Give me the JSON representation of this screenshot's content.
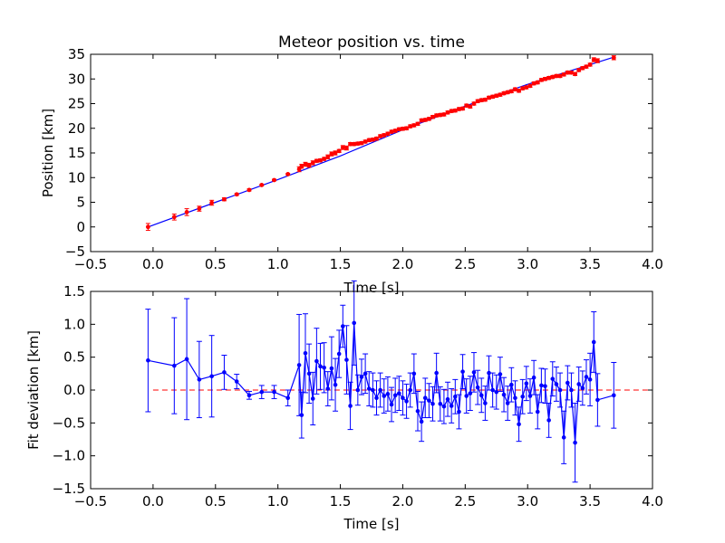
{
  "colors": {
    "fit_line": "#0000ff",
    "observations": "#ff0000",
    "residuals": "#0000ff",
    "zero_line": "#ff0000",
    "axes": "#000000"
  },
  "chart_data": [
    {
      "id": "position",
      "type": "scatter",
      "title": "Meteor position vs. time",
      "xlabel": "Time [s]",
      "ylabel": "Position [km]",
      "xlim": [
        -0.5,
        4.0
      ],
      "ylim": [
        -5,
        35
      ],
      "xticks": [
        -0.5,
        0.0,
        0.5,
        1.0,
        1.5,
        2.0,
        2.5,
        3.0,
        3.5,
        4.0
      ],
      "xtick_labels": [
        "−0.5",
        "0.0",
        "0.5",
        "1.0",
        "1.5",
        "2.0",
        "2.5",
        "3.0",
        "3.5",
        "4.0"
      ],
      "yticks": [
        -5,
        0,
        5,
        10,
        15,
        20,
        25,
        30,
        35
      ],
      "ytick_labels": [
        "−5",
        "0",
        "5",
        "10",
        "15",
        "20",
        "25",
        "30",
        "35"
      ],
      "grid": false,
      "legend": "none",
      "series": [
        {
          "kind": "line",
          "x": [
            -0.04,
            0.5,
            1.0,
            1.5,
            2.0,
            2.5,
            3.0,
            3.5,
            3.7
          ],
          "y": [
            0.0,
            5.0,
            9.6,
            14.4,
            19.7,
            24.5,
            28.9,
            32.9,
            34.5
          ]
        },
        {
          "kind": "points",
          "x": [
            -0.04,
            0.17,
            0.27,
            0.37,
            0.47,
            0.57,
            0.67,
            0.77,
            0.87,
            0.97,
            1.08,
            1.17,
            1.19,
            1.22,
            1.25,
            1.28,
            1.31,
            1.34,
            1.37,
            1.4,
            1.43,
            1.46,
            1.49,
            1.52,
            1.55,
            1.58,
            1.61,
            1.64,
            1.67,
            1.7,
            1.73,
            1.76,
            1.79,
            1.82,
            1.85,
            1.88,
            1.91,
            1.94,
            1.97,
            2.0,
            2.03,
            2.06,
            2.09,
            2.12,
            2.15,
            2.18,
            2.21,
            2.24,
            2.27,
            2.3,
            2.33,
            2.36,
            2.39,
            2.42,
            2.45,
            2.48,
            2.51,
            2.54,
            2.57,
            2.6,
            2.63,
            2.66,
            2.69,
            2.72,
            2.75,
            2.78,
            2.81,
            2.84,
            2.87,
            2.9,
            2.93,
            2.96,
            2.99,
            3.02,
            3.05,
            3.08,
            3.11,
            3.14,
            3.17,
            3.2,
            3.23,
            3.26,
            3.29,
            3.32,
            3.35,
            3.38,
            3.41,
            3.44,
            3.47,
            3.5,
            3.53,
            3.56,
            3.69
          ],
          "y": [
            0.0,
            2.0,
            3.0,
            3.7,
            4.9,
            5.6,
            6.6,
            7.5,
            8.5,
            9.5,
            10.7,
            11.7,
            12.3,
            12.7,
            12.5,
            13.0,
            13.4,
            13.5,
            13.8,
            14.2,
            14.8,
            15.0,
            15.4,
            16.1,
            16.0,
            16.8,
            16.8,
            16.9,
            17.0,
            17.3,
            17.6,
            17.7,
            17.9,
            18.4,
            18.6,
            18.9,
            19.3,
            19.5,
            19.8,
            19.9,
            20.0,
            20.4,
            20.6,
            20.9,
            21.6,
            21.7,
            21.9,
            22.3,
            22.6,
            22.7,
            22.8,
            23.2,
            23.5,
            23.6,
            23.9,
            24.0,
            24.6,
            24.4,
            25.0,
            25.5,
            25.7,
            25.8,
            26.2,
            26.4,
            26.6,
            26.8,
            27.1,
            27.3,
            27.5,
            27.9,
            27.6,
            28.1,
            28.3,
            28.6,
            29.1,
            29.3,
            29.8,
            30.0,
            30.2,
            30.4,
            30.6,
            30.6,
            30.9,
            31.3,
            31.3,
            31.0,
            31.8,
            32.2,
            32.5,
            32.9,
            33.9,
            33.7,
            34.3
          ],
          "yerr": [
            0.7,
            0.6,
            0.7,
            0.5,
            0.5,
            0.3,
            0.2,
            0.2,
            0.15,
            0.15,
            0.15,
            0.5,
            0.4,
            0.4,
            0.4,
            0.4,
            0.3,
            0.3,
            0.3,
            0.4,
            0.4,
            0.4,
            0.3,
            0.4,
            0.4,
            0.3,
            0.3,
            0.3,
            0.3,
            0.3,
            0.3,
            0.3,
            0.3,
            0.3,
            0.3,
            0.3,
            0.3,
            0.3,
            0.3,
            0.3,
            0.3,
            0.3,
            0.3,
            0.3,
            0.3,
            0.3,
            0.3,
            0.3,
            0.3,
            0.3,
            0.3,
            0.3,
            0.3,
            0.3,
            0.3,
            0.3,
            0.3,
            0.3,
            0.3,
            0.3,
            0.3,
            0.3,
            0.3,
            0.3,
            0.3,
            0.3,
            0.3,
            0.3,
            0.3,
            0.3,
            0.3,
            0.3,
            0.3,
            0.3,
            0.3,
            0.3,
            0.3,
            0.3,
            0.3,
            0.3,
            0.3,
            0.3,
            0.3,
            0.3,
            0.3,
            0.3,
            0.3,
            0.3,
            0.3,
            0.3,
            0.4,
            0.4,
            0.4
          ]
        }
      ]
    },
    {
      "id": "residuals",
      "type": "line",
      "title": "",
      "xlabel": "Time [s]",
      "ylabel": "Fit deviation [km]",
      "xlim": [
        -0.5,
        4.0
      ],
      "ylim": [
        -1.5,
        1.5
      ],
      "xticks": [
        -0.5,
        0.0,
        0.5,
        1.0,
        1.5,
        2.0,
        2.5,
        3.0,
        3.5,
        4.0
      ],
      "xtick_labels": [
        "−0.5",
        "0.0",
        "0.5",
        "1.0",
        "1.5",
        "2.0",
        "2.5",
        "3.0",
        "3.5",
        "4.0"
      ],
      "yticks": [
        -1.5,
        -1.0,
        -0.5,
        0.0,
        0.5,
        1.0,
        1.5
      ],
      "ytick_labels": [
        "−1.5",
        "−1.0",
        "−0.5",
        "0.0",
        "0.5",
        "1.0",
        "1.5"
      ],
      "grid": false,
      "legend": "none",
      "reference_line": 0.0,
      "series": [
        {
          "kind": "line_with_markers",
          "x": [
            -0.04,
            0.17,
            0.27,
            0.37,
            0.47,
            0.57,
            0.67,
            0.77,
            0.87,
            0.97,
            1.08,
            1.17,
            1.19,
            1.22,
            1.25,
            1.28,
            1.31,
            1.34,
            1.37,
            1.4,
            1.43,
            1.46,
            1.49,
            1.52,
            1.55,
            1.58,
            1.61,
            1.64,
            1.67,
            1.7,
            1.73,
            1.76,
            1.79,
            1.82,
            1.85,
            1.88,
            1.91,
            1.94,
            1.97,
            2.0,
            2.03,
            2.06,
            2.09,
            2.12,
            2.15,
            2.18,
            2.21,
            2.24,
            2.27,
            2.3,
            2.33,
            2.36,
            2.39,
            2.42,
            2.45,
            2.48,
            2.51,
            2.54,
            2.57,
            2.6,
            2.63,
            2.66,
            2.69,
            2.72,
            2.75,
            2.78,
            2.81,
            2.84,
            2.87,
            2.9,
            2.93,
            2.96,
            2.99,
            3.02,
            3.05,
            3.08,
            3.11,
            3.14,
            3.17,
            3.2,
            3.23,
            3.26,
            3.29,
            3.32,
            3.35,
            3.38,
            3.41,
            3.44,
            3.47,
            3.5,
            3.53,
            3.56,
            3.69
          ],
          "y": [
            0.45,
            0.37,
            0.47,
            0.16,
            0.21,
            0.27,
            0.13,
            -0.08,
            -0.03,
            -0.03,
            -0.12,
            0.38,
            -0.38,
            0.56,
            0.25,
            -0.13,
            0.44,
            0.36,
            0.34,
            0.02,
            0.33,
            0.08,
            0.55,
            0.97,
            0.46,
            -0.24,
            1.02,
            0.0,
            0.2,
            0.25,
            0.02,
            0.0,
            -0.12,
            0.0,
            -0.09,
            -0.06,
            -0.22,
            -0.08,
            -0.05,
            -0.12,
            -0.17,
            0.0,
            0.25,
            -0.32,
            -0.48,
            -0.12,
            -0.16,
            -0.21,
            0.26,
            -0.21,
            -0.25,
            -0.14,
            -0.24,
            -0.1,
            -0.33,
            0.28,
            -0.09,
            -0.05,
            0.27,
            0.04,
            -0.08,
            -0.2,
            0.26,
            0.0,
            -0.03,
            0.24,
            -0.07,
            -0.2,
            0.08,
            -0.12,
            -0.52,
            -0.1,
            0.1,
            -0.09,
            0.19,
            -0.33,
            0.07,
            0.06,
            -0.46,
            0.17,
            0.09,
            0.0,
            -0.72,
            0.11,
            0.0,
            -0.8,
            0.09,
            0.03,
            0.2,
            0.16,
            0.73,
            -0.15,
            -0.08
          ],
          "yerr": [
            0.78,
            0.73,
            0.92,
            0.58,
            0.62,
            0.26,
            0.11,
            0.06,
            0.1,
            0.1,
            0.12,
            0.77,
            0.35,
            0.6,
            0.45,
            0.4,
            0.5,
            0.35,
            0.38,
            0.26,
            0.48,
            0.4,
            0.36,
            0.32,
            0.52,
            0.36,
            0.64,
            0.23,
            0.27,
            0.3,
            0.26,
            0.26,
            0.26,
            0.26,
            0.26,
            0.26,
            0.26,
            0.26,
            0.26,
            0.26,
            0.26,
            0.26,
            0.3,
            0.3,
            0.3,
            0.3,
            0.26,
            0.26,
            0.3,
            0.26,
            0.26,
            0.26,
            0.26,
            0.26,
            0.26,
            0.26,
            0.26,
            0.26,
            0.3,
            0.26,
            0.26,
            0.26,
            0.26,
            0.26,
            0.26,
            0.26,
            0.26,
            0.26,
            0.26,
            0.26,
            0.26,
            0.26,
            0.26,
            0.26,
            0.26,
            0.26,
            0.26,
            0.26,
            0.26,
            0.26,
            0.26,
            0.26,
            0.4,
            0.26,
            0.26,
            0.6,
            0.26,
            0.26,
            0.26,
            0.4,
            0.46,
            0.4,
            0.5
          ]
        }
      ]
    }
  ]
}
